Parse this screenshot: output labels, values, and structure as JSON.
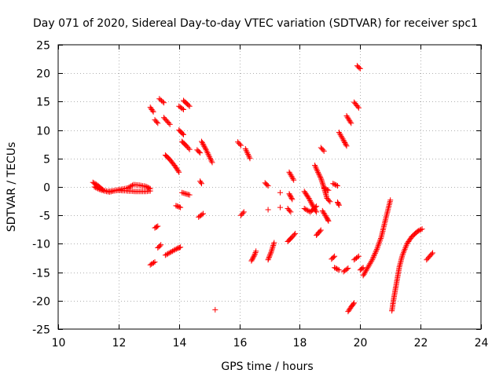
{
  "chart_data": {
    "type": "scatter",
    "title": "Day 071 of 2020, Sidereal Day-to-day VTEC variation (SDTVAR) for receiver spc1",
    "xlabel": "GPS time / hours",
    "ylabel": "SDTVAR / TECUs",
    "xlim": [
      10,
      24
    ],
    "ylim": [
      -25,
      25
    ],
    "xticks": [
      10,
      12,
      14,
      16,
      18,
      20,
      22,
      24
    ],
    "yticks": [
      -25,
      -20,
      -15,
      -10,
      -5,
      0,
      5,
      10,
      15,
      20,
      25
    ],
    "grid": true,
    "marker": "+",
    "series_color": "#ff0000",
    "segments": [
      [
        [
          11.15,
          0.8
        ],
        [
          11.3,
          0.3
        ],
        [
          11.5,
          -0.6
        ],
        [
          11.7,
          -0.9
        ],
        [
          11.9,
          -0.6
        ],
        [
          12.1,
          -0.4
        ],
        [
          12.3,
          -0.2
        ],
        [
          12.5,
          0.4
        ],
        [
          12.7,
          0.3
        ],
        [
          12.9,
          0.1
        ],
        [
          13.05,
          -0.3
        ]
      ],
      [
        [
          11.2,
          0.0
        ],
        [
          11.4,
          -0.5
        ],
        [
          11.6,
          -0.8
        ],
        [
          11.8,
          -0.7
        ],
        [
          12.0,
          -0.6
        ],
        [
          12.3,
          -0.7
        ],
        [
          12.6,
          -0.8
        ],
        [
          12.9,
          -0.8
        ],
        [
          13.05,
          -0.7
        ]
      ],
      [
        [
          13.05,
          14.0
        ],
        [
          13.15,
          13.2
        ]
      ],
      [
        [
          13.2,
          11.8
        ],
        [
          13.3,
          11.2
        ]
      ],
      [
        [
          13.35,
          15.5
        ],
        [
          13.5,
          14.8
        ]
      ],
      [
        [
          13.2,
          -7.2
        ],
        [
          13.3,
          -6.9
        ]
      ],
      [
        [
          13.05,
          -13.7
        ],
        [
          13.2,
          -13.2
        ]
      ],
      [
        [
          13.3,
          -10.7
        ],
        [
          13.4,
          -10.2
        ]
      ],
      [
        [
          13.5,
          12.2
        ],
        [
          13.7,
          11.0
        ]
      ],
      [
        [
          13.55,
          5.6
        ],
        [
          13.7,
          4.8
        ],
        [
          13.85,
          3.8
        ],
        [
          14.0,
          2.6
        ]
      ],
      [
        [
          13.55,
          -12.0
        ],
        [
          13.75,
          -11.4
        ],
        [
          13.95,
          -10.8
        ],
        [
          14.05,
          -10.6
        ]
      ],
      [
        [
          13.9,
          -3.3
        ],
        [
          14.05,
          -3.6
        ]
      ],
      [
        [
          14.0,
          10.0
        ],
        [
          14.15,
          9.2
        ]
      ],
      [
        [
          14.0,
          14.2
        ],
        [
          14.15,
          13.6
        ]
      ],
      [
        [
          14.15,
          15.2
        ],
        [
          14.35,
          14.2
        ]
      ],
      [
        [
          14.1,
          8.0
        ],
        [
          14.25,
          7.2
        ],
        [
          14.35,
          6.6
        ]
      ],
      [
        [
          14.1,
          -1.0
        ],
        [
          14.35,
          -1.4
        ]
      ],
      [
        [
          14.7,
          1.0
        ],
        [
          14.75,
          0.6
        ]
      ],
      [
        [
          14.6,
          6.5
        ],
        [
          14.7,
          6.0
        ]
      ],
      [
        [
          14.65,
          -5.3
        ],
        [
          14.8,
          -4.7
        ]
      ],
      [
        [
          14.75,
          8.0
        ],
        [
          14.9,
          6.5
        ],
        [
          15.1,
          4.3
        ]
      ],
      [
        [
          15.2,
          -21.6
        ]
      ],
      [
        [
          15.95,
          7.9
        ],
        [
          16.05,
          7.3
        ]
      ],
      [
        [
          16.05,
          -5.0
        ],
        [
          16.15,
          -4.4
        ]
      ],
      [
        [
          16.2,
          6.7
        ],
        [
          16.35,
          5.0
        ]
      ],
      [
        [
          16.4,
          -13.0
        ],
        [
          16.5,
          -12.0
        ],
        [
          16.55,
          -11.3
        ]
      ],
      [
        [
          16.85,
          0.7
        ],
        [
          16.95,
          0.2
        ]
      ],
      [
        [
          16.95,
          -4.0
        ]
      ],
      [
        [
          16.95,
          -12.8
        ],
        [
          17.05,
          -11.5
        ],
        [
          17.15,
          -9.8
        ]
      ],
      [
        [
          17.35,
          -3.6
        ]
      ],
      [
        [
          17.35,
          -1.0
        ]
      ],
      [
        [
          17.65,
          2.6
        ],
        [
          17.8,
          1.2
        ]
      ],
      [
        [
          17.65,
          -1.2
        ],
        [
          17.75,
          -2.2
        ]
      ],
      [
        [
          17.6,
          -3.8
        ],
        [
          17.7,
          -4.4
        ]
      ],
      [
        [
          17.6,
          -9.6
        ],
        [
          17.75,
          -8.8
        ],
        [
          17.85,
          -8.2
        ]
      ],
      [
        [
          18.15,
          -0.8
        ],
        [
          18.3,
          -2.0
        ],
        [
          18.45,
          -3.5
        ],
        [
          18.55,
          -4.4
        ]
      ],
      [
        [
          18.15,
          -3.8
        ],
        [
          18.35,
          -4.4
        ],
        [
          18.55,
          -3.4
        ]
      ],
      [
        [
          18.5,
          3.8
        ],
        [
          18.6,
          2.6
        ],
        [
          18.7,
          1.5
        ],
        [
          18.8,
          -0.1
        ],
        [
          18.9,
          -2.0
        ],
        [
          19.0,
          -2.6
        ]
      ],
      [
        [
          18.55,
          -8.5
        ],
        [
          18.7,
          -7.6
        ]
      ],
      [
        [
          18.7,
          6.9
        ],
        [
          18.8,
          6.3
        ]
      ],
      [
        [
          18.75,
          -4.2
        ],
        [
          18.9,
          -5.5
        ],
        [
          18.95,
          -6.0
        ]
      ],
      [
        [
          18.8,
          -0.2
        ],
        [
          18.95,
          -0.6
        ]
      ],
      [
        [
          19.05,
          -12.7
        ],
        [
          19.15,
          -12.2
        ]
      ],
      [
        [
          19.1,
          0.6
        ],
        [
          19.25,
          0.2
        ]
      ],
      [
        [
          19.15,
          -14.2
        ],
        [
          19.3,
          -14.6
        ]
      ],
      [
        [
          19.3,
          9.6
        ],
        [
          19.45,
          8.2
        ],
        [
          19.55,
          7.2
        ]
      ],
      [
        [
          19.25,
          -2.7
        ],
        [
          19.3,
          -3.2
        ]
      ],
      [
        [
          19.45,
          -14.9
        ],
        [
          19.6,
          -14.3
        ]
      ],
      [
        [
          19.55,
          12.5
        ],
        [
          19.7,
          11.2
        ]
      ],
      [
        [
          19.6,
          -21.9
        ],
        [
          19.7,
          -21.1
        ],
        [
          19.8,
          -20.4
        ]
      ],
      [
        [
          19.8,
          14.9
        ],
        [
          19.95,
          13.9
        ]
      ],
      [
        [
          19.8,
          -12.8
        ],
        [
          19.95,
          -12.2
        ]
      ],
      [
        [
          19.9,
          21.3
        ],
        [
          20.0,
          20.8
        ]
      ],
      [
        [
          20.0,
          -14.6
        ],
        [
          20.1,
          -14.2
        ]
      ],
      [
        [
          20.1,
          -15.6
        ],
        [
          20.25,
          -14.2
        ],
        [
          20.4,
          -12.8
        ],
        [
          20.55,
          -11.0
        ],
        [
          20.7,
          -8.8
        ],
        [
          20.85,
          -5.5
        ],
        [
          21.0,
          -2.3
        ]
      ],
      [
        [
          21.05,
          -21.8
        ],
        [
          21.1,
          -20.0
        ],
        [
          21.2,
          -17.0
        ],
        [
          21.3,
          -14.0
        ],
        [
          21.4,
          -12.0
        ],
        [
          21.55,
          -10.0
        ],
        [
          21.7,
          -8.8
        ],
        [
          21.9,
          -7.8
        ],
        [
          22.05,
          -7.4
        ]
      ],
      [
        [
          22.2,
          -12.8
        ],
        [
          22.4,
          -11.6
        ]
      ]
    ]
  }
}
